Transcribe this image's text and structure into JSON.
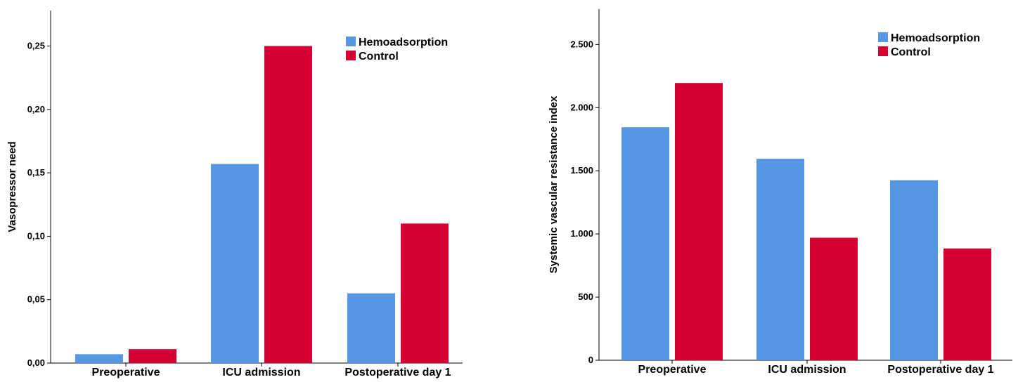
{
  "chart_data": [
    {
      "type": "bar",
      "categories": [
        "Preoperative",
        "ICU admission",
        "Postoperative day 1"
      ],
      "series": [
        {
          "name": "Hemoadsorption",
          "values": [
            0.007,
            0.157,
            0.055
          ]
        },
        {
          "name": "Control",
          "values": [
            0.011,
            0.25,
            0.11
          ]
        }
      ],
      "ylabel": "Vasopressor need",
      "xlabel": "",
      "ylim": [
        0,
        0.278
      ],
      "yticks": [
        0,
        0.05,
        0.1,
        0.15,
        0.2,
        0.25
      ],
      "ytick_labels": [
        "0,00",
        "0,05",
        "0,10",
        "0,15",
        "0,20",
        "0,25"
      ],
      "legend_position": "top-right",
      "grid": false,
      "colors": {
        "Hemoadsorption": "#5597e3",
        "Control": "#d40033"
      }
    },
    {
      "type": "bar",
      "categories": [
        "Preoperative",
        "ICU admission",
        "Postoperative day 1"
      ],
      "series": [
        {
          "name": "Hemoadsorption",
          "values": [
            1845,
            1595,
            1425
          ]
        },
        {
          "name": "Control",
          "values": [
            2195,
            970,
            885
          ]
        }
      ],
      "ylabel": "Systemic vascular resistance index",
      "xlabel": "",
      "ylim": [
        0,
        2780
      ],
      "yticks": [
        0,
        500,
        1000,
        1500,
        2000,
        2500
      ],
      "ytick_labels": [
        "0",
        "500",
        "1.000",
        "1.500",
        "2.000",
        "2.500"
      ],
      "legend_position": "top-right",
      "grid": false,
      "colors": {
        "Hemoadsorption": "#5597e3",
        "Control": "#d40033"
      }
    }
  ]
}
